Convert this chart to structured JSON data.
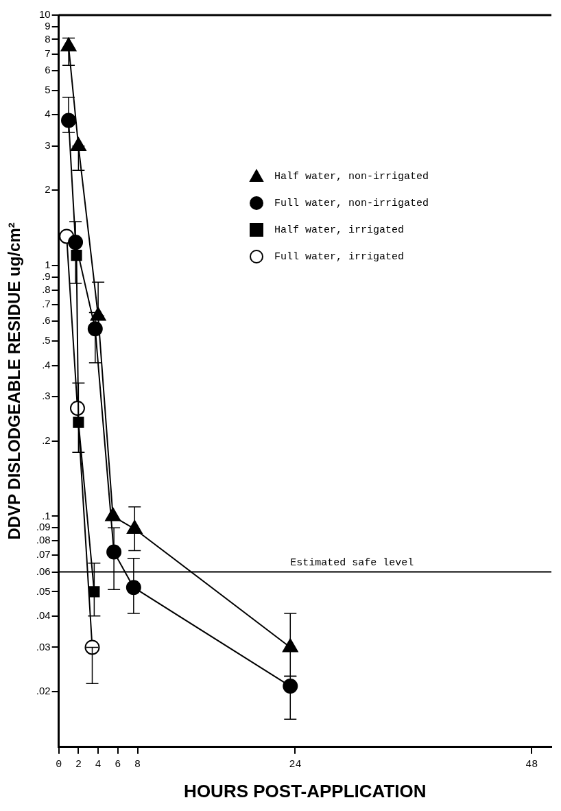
{
  "chart_data": {
    "type": "line",
    "xlabel": "HOURS POST-APPLICATION",
    "ylabel": "DDVP DISLODGEABLE RESIDUE ug/cm²",
    "xlim": [
      0,
      50
    ],
    "xticks": [
      0,
      2,
      4,
      6,
      8,
      24,
      48
    ],
    "ylim": [
      0.012,
      10
    ],
    "log": true,
    "yticks": [
      {
        "value": 0.02,
        "label": ".02"
      },
      {
        "value": 0.03,
        "label": ".03"
      },
      {
        "value": 0.04,
        "label": ".04"
      },
      {
        "value": 0.05,
        "label": ".05"
      },
      {
        "value": 0.06,
        "label": ".06"
      },
      {
        "value": 0.07,
        "label": ".07"
      },
      {
        "value": 0.08,
        "label": ".08"
      },
      {
        "value": 0.09,
        "label": ".09"
      },
      {
        "value": 0.1,
        "label": ".1"
      },
      {
        "value": 0.2,
        "label": ".2"
      },
      {
        "value": 0.3,
        "label": ".3"
      },
      {
        "value": 0.4,
        "label": ".4"
      },
      {
        "value": 0.5,
        "label": ".5"
      },
      {
        "value": 0.6,
        "label": ".6"
      },
      {
        "value": 0.7,
        "label": ".7"
      },
      {
        "value": 0.8,
        "label": ".8"
      },
      {
        "value": 0.9,
        "label": ".9"
      },
      1,
      2,
      3,
      4,
      5,
      6,
      7,
      8,
      9,
      10
    ],
    "grid": false,
    "legend": "top right",
    "line_style": "solid",
    "ref_lines": [
      {
        "axis": "y",
        "value": 0.06,
        "label": "Estimated safe level"
      }
    ],
    "series": [
      {
        "name": "Half water, non-irrigated",
        "color": "#000000",
        "marker": "triangle",
        "x": [
          1,
          2,
          4,
          5.5,
          7.7,
          23.5
        ],
        "values": [
          7.5,
          3,
          0.63,
          0.1,
          0.089,
          0.03
        ],
        "errors": [
          [
            6.3,
            8.1
          ],
          [
            2.4,
            3
          ],
          [
            0.63,
            0.86
          ],
          null,
          [
            0.073,
            0.109
          ],
          [
            0.023,
            0.041
          ]
        ]
      },
      {
        "name": "Full water, non-irrigated",
        "color": "#000000",
        "marker": "circle",
        "x": [
          1,
          1.7,
          3.7,
          5.6,
          7.6,
          23.5
        ],
        "values": [
          3.8,
          1.24,
          0.56,
          0.072,
          0.052,
          0.021
        ],
        "errors": [
          [
            3.4,
            4.7
          ],
          [
            0.85,
            1.5
          ],
          [
            0.41,
            0.65
          ],
          [
            0.051,
            0.09
          ],
          [
            0.041,
            0.068
          ],
          [
            0.0155,
            0.023
          ]
        ]
      },
      {
        "name": "Half water, irrigated",
        "color": "#000000",
        "marker": "square",
        "x": [
          1.8,
          2,
          3.6
        ],
        "values": [
          1.1,
          0.237,
          0.05
        ],
        "errors": [
          null,
          [
            0.18,
            0.34
          ],
          [
            0.04,
            0.065
          ]
        ]
      },
      {
        "name": "Full water, irrigated",
        "color": "#ffffff",
        "marker": "circle",
        "x": [
          0.8,
          1.9,
          3.4
        ],
        "values": [
          1.31,
          0.27,
          0.03
        ],
        "errors": [
          null,
          null,
          [
            0.0215,
            0.03
          ]
        ]
      }
    ]
  }
}
